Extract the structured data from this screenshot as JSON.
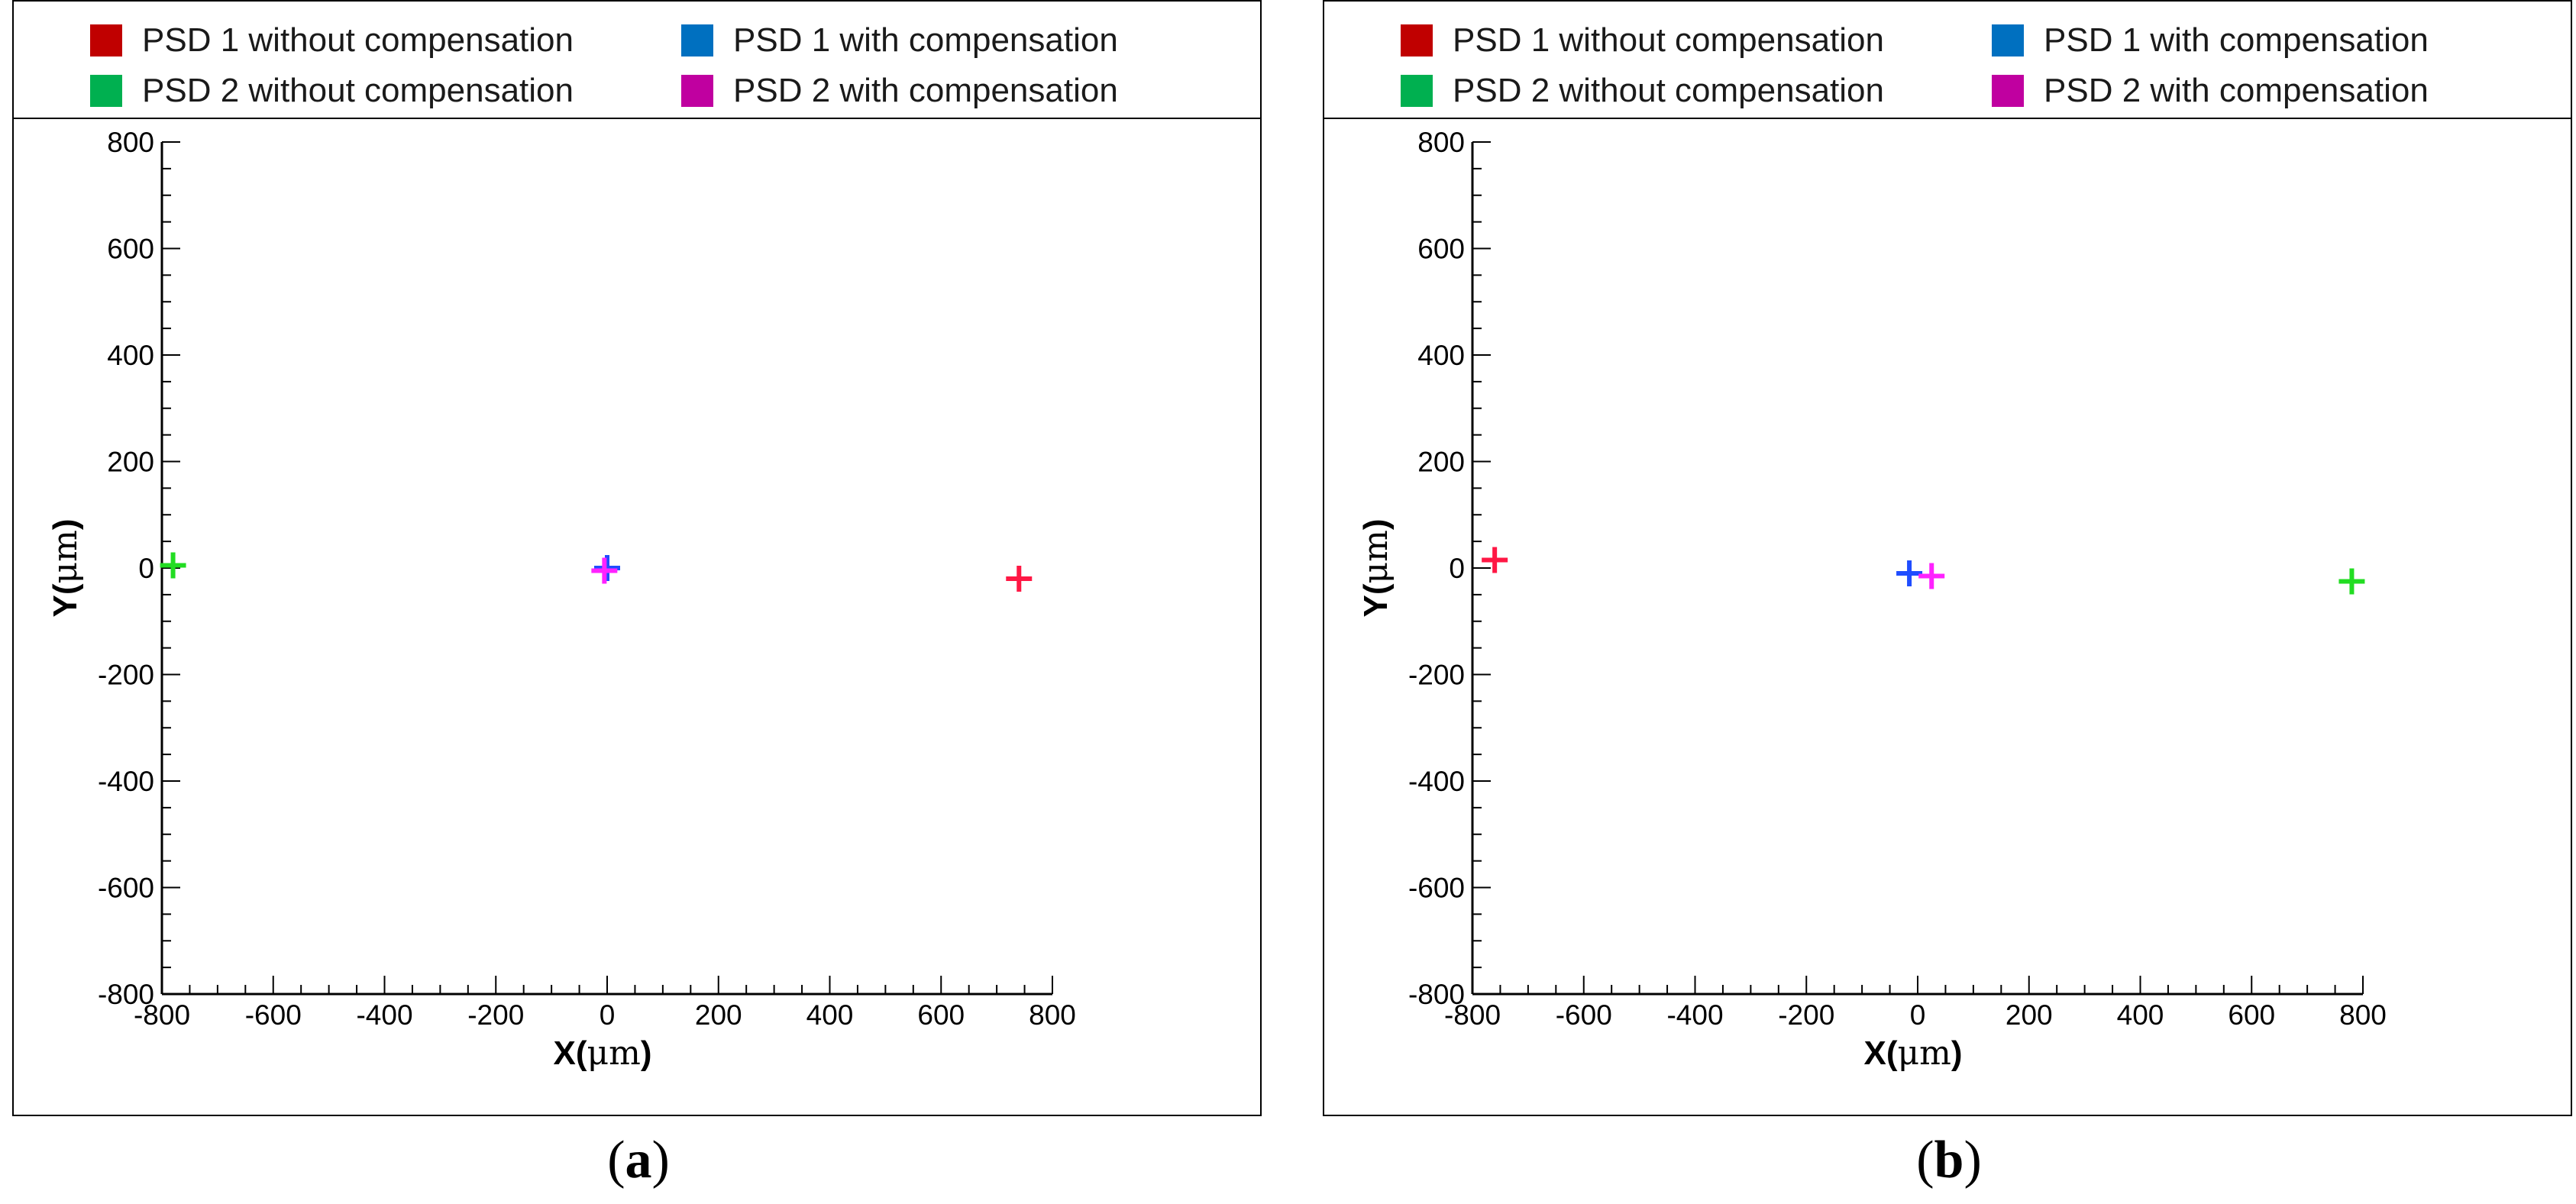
{
  "legend": {
    "items": [
      {
        "label": "PSD 1 without compensation",
        "color": "#c00000"
      },
      {
        "label": "PSD 1 with compensation",
        "color": "#0070c0"
      },
      {
        "label": "PSD 2 without compensation",
        "color": "#00b050"
      },
      {
        "label": "PSD 2 with compensation",
        "color": "#c000a0"
      }
    ]
  },
  "chart_data": [
    {
      "type": "scatter",
      "caption": "a",
      "xlabel_prefix": "X(",
      "xlabel_unit": "μm",
      "xlabel_suffix": ")",
      "ylabel_prefix": "Y(",
      "ylabel_unit": "μm",
      "ylabel_suffix": ")",
      "xlim": [
        -800,
        800
      ],
      "ylim": [
        -800,
        800
      ],
      "xticks": [
        -800,
        -600,
        -400,
        -200,
        0,
        200,
        400,
        600,
        800
      ],
      "yticks": [
        -800,
        -600,
        -400,
        -200,
        0,
        200,
        400,
        600,
        800
      ],
      "grid": false,
      "series": [
        {
          "name": "PSD 1 without compensation",
          "marker_color": "#ff1744",
          "x": [
            740
          ],
          "y": [
            -20
          ]
        },
        {
          "name": "PSD 1 with compensation",
          "marker_color": "#1f4dff",
          "x": [
            0
          ],
          "y": [
            0
          ]
        },
        {
          "name": "PSD 2 without compensation",
          "marker_color": "#22dd22",
          "x": [
            -780
          ],
          "y": [
            5
          ]
        },
        {
          "name": "PSD 2 with compensation",
          "marker_color": "#ff22ff",
          "x": [
            -5
          ],
          "y": [
            -5
          ]
        }
      ]
    },
    {
      "type": "scatter",
      "caption": "b",
      "xlabel_prefix": "X(",
      "xlabel_unit": "μm",
      "xlabel_suffix": ")",
      "ylabel_prefix": "Y(",
      "ylabel_unit": "μm",
      "ylabel_suffix": ")",
      "xlim": [
        -800,
        800
      ],
      "ylim": [
        -800,
        800
      ],
      "xticks": [
        -800,
        -600,
        -400,
        -200,
        0,
        200,
        400,
        600,
        800
      ],
      "yticks": [
        -800,
        -600,
        -400,
        -200,
        0,
        200,
        400,
        600,
        800
      ],
      "grid": false,
      "series": [
        {
          "name": "PSD 1 without compensation",
          "marker_color": "#ff1744",
          "x": [
            -760
          ],
          "y": [
            15
          ]
        },
        {
          "name": "PSD 1 with compensation",
          "marker_color": "#1f4dff",
          "x": [
            -15
          ],
          "y": [
            -10
          ]
        },
        {
          "name": "PSD 2 without compensation",
          "marker_color": "#22dd22",
          "x": [
            780
          ],
          "y": [
            -25
          ]
        },
        {
          "name": "PSD 2 with compensation",
          "marker_color": "#ff22ff",
          "x": [
            25
          ],
          "y": [
            -15
          ]
        }
      ]
    }
  ]
}
